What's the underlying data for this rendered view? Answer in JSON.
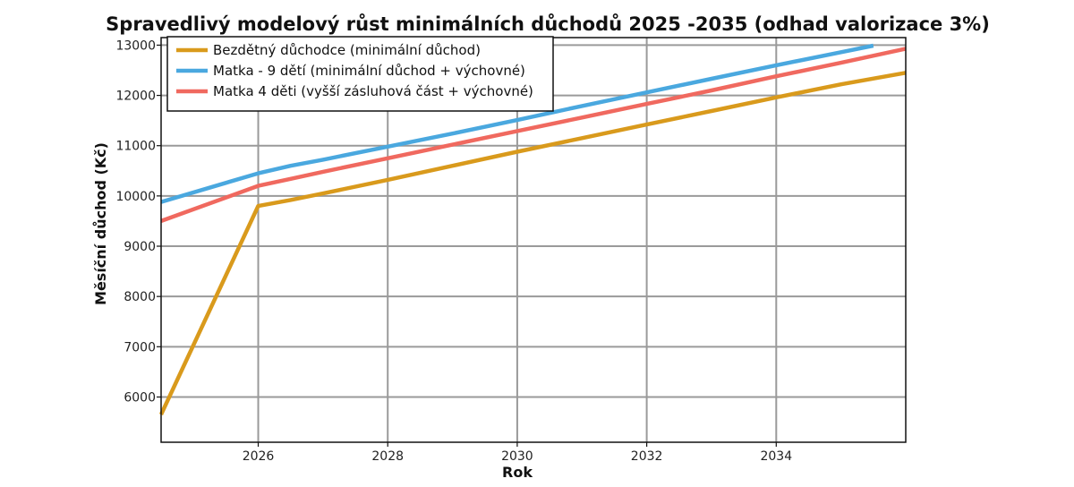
{
  "chart_data": {
    "type": "line",
    "title": "Spravedlivý modelový růst minimálních důchodů 2025 -2035 (odhad valorizace 3%)",
    "xlabel": "Rok",
    "ylabel": "Měsíční důchod (Kč)",
    "xlim": [
      2024.5,
      2036
    ],
    "ylim": [
      5100,
      13150
    ],
    "xticks": [
      2026,
      2028,
      2030,
      2032,
      2034
    ],
    "yticks": [
      6000,
      7000,
      8000,
      9000,
      10000,
      11000,
      12000,
      13000
    ],
    "grid": true,
    "legend_position": "top-left",
    "series": [
      {
        "name": "Bezdětný důchodce (minimální důchod)",
        "color": "#d99a1c",
        "x": [
          2024.5,
          2026,
          2026.5,
          2027,
          2028,
          2029,
          2030,
          2031,
          2032,
          2033,
          2034,
          2035,
          2036
        ],
        "y": [
          5650,
          9800,
          9920,
          10050,
          10320,
          10600,
          10880,
          11150,
          11420,
          11690,
          11960,
          12220,
          12450
        ]
      },
      {
        "name": "Matka - 9 dětí (minimální důchod + výchovné)",
        "color": "#4aa8df",
        "x": [
          2024.5,
          2026,
          2026.5,
          2027,
          2028,
          2029,
          2030,
          2031,
          2032,
          2033,
          2034,
          2035,
          2035.5
        ],
        "y": [
          9880,
          10450,
          10600,
          10720,
          10980,
          11240,
          11510,
          11790,
          12060,
          12330,
          12600,
          12860,
          12990
        ]
      },
      {
        "name": "Matka 4 děti (vyšší zásluhová část + výchovné)",
        "color": "#f0695f",
        "x": [
          2024.5,
          2026,
          2026.5,
          2027,
          2028,
          2029,
          2030,
          2031,
          2032,
          2033,
          2034,
          2035,
          2036
        ],
        "y": [
          9500,
          10200,
          10340,
          10480,
          10750,
          11020,
          11290,
          11560,
          11830,
          12100,
          12380,
          12650,
          12930
        ]
      }
    ]
  }
}
